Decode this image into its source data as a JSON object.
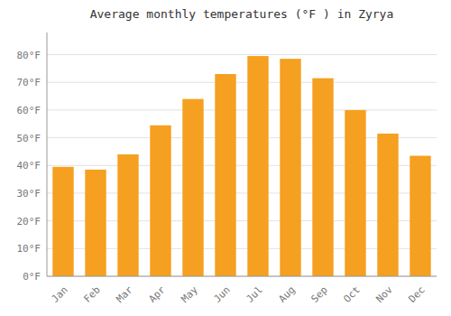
{
  "chart_data": {
    "type": "bar",
    "title": "Average monthly temperatures (°F ) in Zyrya",
    "categories": [
      "Jan",
      "Feb",
      "Mar",
      "Apr",
      "May",
      "Jun",
      "Jul",
      "Aug",
      "Sep",
      "Oct",
      "Nov",
      "Dec"
    ],
    "values": [
      39.5,
      38.5,
      44.0,
      54.5,
      64.0,
      73.0,
      79.5,
      78.5,
      71.5,
      60.0,
      51.5,
      43.5
    ],
    "color": "#F5A020",
    "ylim": [
      0,
      88
    ],
    "yticks": [
      {
        "value": 0,
        "label": "0°F"
      },
      {
        "value": 10,
        "label": "10°F"
      },
      {
        "value": 20,
        "label": "20°F"
      },
      {
        "value": 30,
        "label": "30°F"
      },
      {
        "value": 40,
        "label": "40°F"
      },
      {
        "value": 50,
        "label": "50°F"
      },
      {
        "value": 60,
        "label": "60°F"
      },
      {
        "value": 70,
        "label": "70°F"
      },
      {
        "value": 80,
        "label": "80°F"
      }
    ],
    "grid": true
  }
}
